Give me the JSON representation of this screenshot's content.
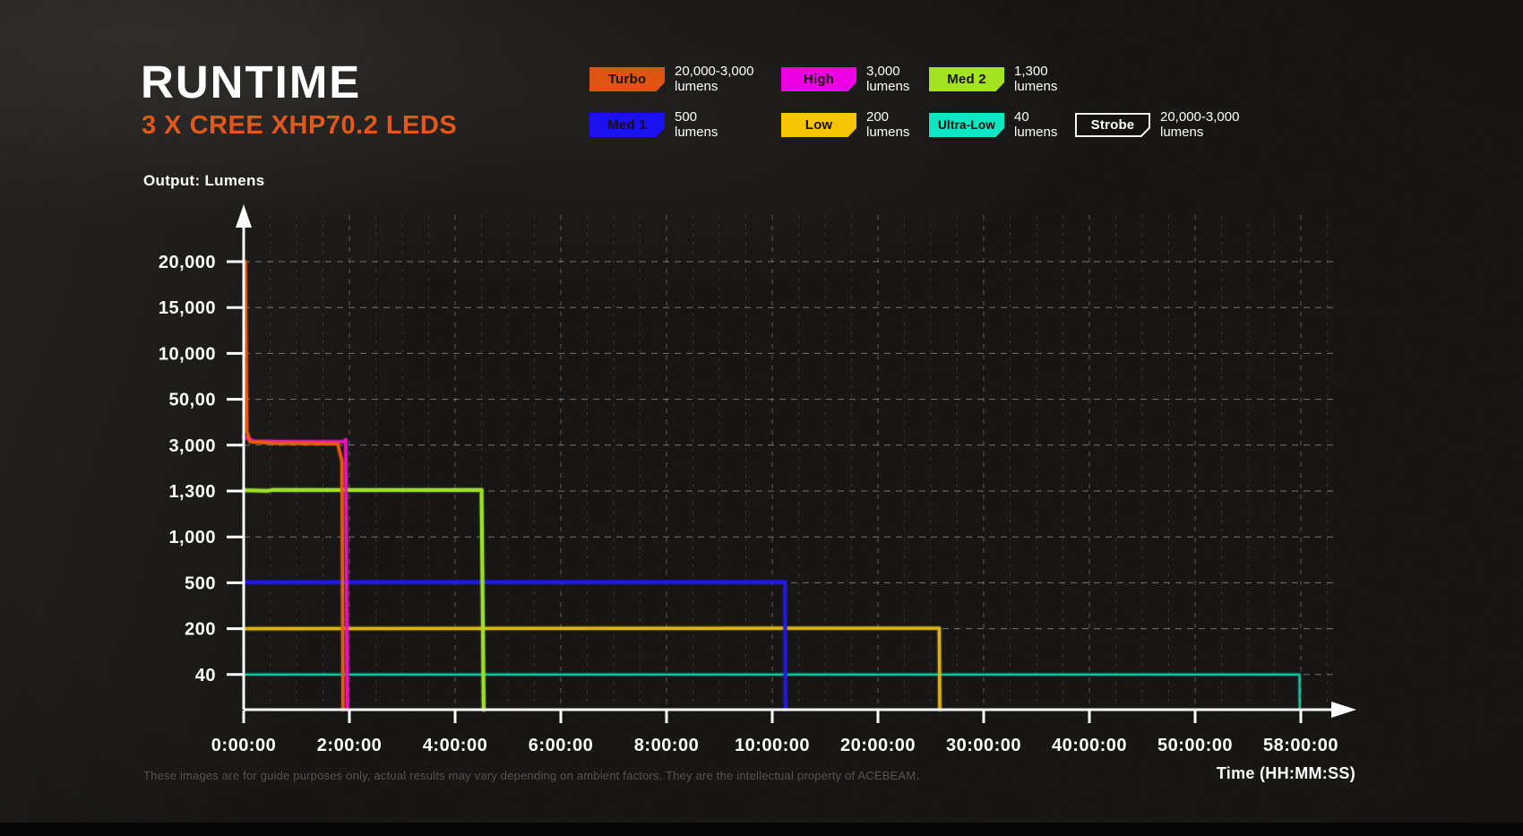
{
  "title": {
    "main": "RUNTIME",
    "subtitle": "3 X CREE XHP70.2 LEDS"
  },
  "accent_color": "#e2571a",
  "legend": {
    "items": [
      {
        "label": "Turbo",
        "value": "20,000-3,000",
        "unit": "lumens",
        "color": "#dd5413",
        "outlined": false
      },
      {
        "label": "High",
        "value": "3,000",
        "unit": "lumens",
        "color": "#ee00e4",
        "outlined": false
      },
      {
        "label": "Med 2",
        "value": "1,300",
        "unit": "lumens",
        "color": "#a4e321",
        "outlined": false
      },
      {
        "label": "Med 1",
        "value": "500",
        "unit": "lumens",
        "color": "#1a10f0",
        "outlined": false
      },
      {
        "label": "Low",
        "value": "200",
        "unit": "lumens",
        "color": "#f5c503",
        "outlined": false
      },
      {
        "label": "Ultra-Low",
        "value": "40",
        "unit": "lumens",
        "color": "#0de5c3",
        "outlined": false
      },
      {
        "label": "Strobe",
        "value": "20,000-3,000",
        "unit": "lumens",
        "color": "none",
        "outlined": true
      }
    ]
  },
  "chart_data": {
    "type": "line",
    "title": "RUNTIME",
    "xlabel": "Time (HH:MM:SS)",
    "ylabel": "Output: Lumens",
    "grid": "dashed, 4 minor subdivisions per major vertical interval",
    "legend_position": "top-right",
    "x_ticks": [
      {
        "label": "0:00:00",
        "hours": 0
      },
      {
        "label": "2:00:00",
        "hours": 2
      },
      {
        "label": "4:00:00",
        "hours": 4
      },
      {
        "label": "6:00:00",
        "hours": 6
      },
      {
        "label": "8:00:00",
        "hours": 8
      },
      {
        "label": "10:00:00",
        "hours": 10
      },
      {
        "label": "20:00:00",
        "hours": 20
      },
      {
        "label": "30:00:00",
        "hours": 30
      },
      {
        "label": "40:00:00",
        "hours": 40
      },
      {
        "label": "50:00:00",
        "hours": 50
      },
      {
        "label": "58:00:00",
        "hours": 58
      }
    ],
    "y_ticks": [
      {
        "label": "20,000",
        "value": 20000
      },
      {
        "label": "15,000",
        "value": 15000
      },
      {
        "label": "10,000",
        "value": 10000
      },
      {
        "label": "50,00",
        "value": 5000
      },
      {
        "label": "3,000",
        "value": 3000
      },
      {
        "label": "1,300",
        "value": 1300
      },
      {
        "label": "1,000",
        "value": 1000
      },
      {
        "label": "500",
        "value": 500
      },
      {
        "label": "200",
        "value": 200
      },
      {
        "label": "40",
        "value": 40
      }
    ],
    "series": [
      {
        "name": "Turbo",
        "color": "#e85c0f",
        "width": 3.5,
        "points": [
          [
            0.03,
            20000
          ],
          [
            0.06,
            3600
          ],
          [
            0.12,
            3150
          ],
          [
            0.6,
            3080
          ],
          [
            1.3,
            3070
          ],
          [
            1.78,
            3050
          ],
          [
            1.86,
            2400
          ],
          [
            1.88,
            0
          ]
        ]
      },
      {
        "name": "High",
        "color": "#f013c2",
        "width": 3.5,
        "points": [
          [
            0,
            3350
          ],
          [
            0.2,
            3170
          ],
          [
            1.2,
            3150
          ],
          [
            1.88,
            3150
          ],
          [
            1.93,
            3230
          ],
          [
            1.96,
            0
          ]
        ]
      },
      {
        "name": "Med 2",
        "color": "#9fe32a",
        "width": 4,
        "points": [
          [
            0,
            1330
          ],
          [
            0.45,
            1305
          ],
          [
            0.55,
            1340
          ],
          [
            2.5,
            1335
          ],
          [
            4.5,
            1340
          ],
          [
            4.54,
            0
          ]
        ]
      },
      {
        "name": "Med 1",
        "color": "#211ae2",
        "width": 4,
        "points": [
          [
            0,
            505
          ],
          [
            5,
            508
          ],
          [
            11.2,
            508
          ],
          [
            11.25,
            0
          ]
        ]
      },
      {
        "name": "Low",
        "color": "#dfb713",
        "width": 3.5,
        "points": [
          [
            0,
            200
          ],
          [
            12,
            203
          ],
          [
            25.8,
            203
          ],
          [
            25.85,
            0
          ]
        ]
      },
      {
        "name": "Ultra-Low",
        "color": "#19c9a2",
        "width": 2.2,
        "points": [
          [
            0,
            40
          ],
          [
            57.9,
            40
          ],
          [
            57.92,
            0
          ]
        ]
      }
    ]
  },
  "footer": {
    "disclaimer": "These images are for guide purposes only, actual results may vary depending on ambient factors. They are the intellectual property of ACEBEAM."
  }
}
